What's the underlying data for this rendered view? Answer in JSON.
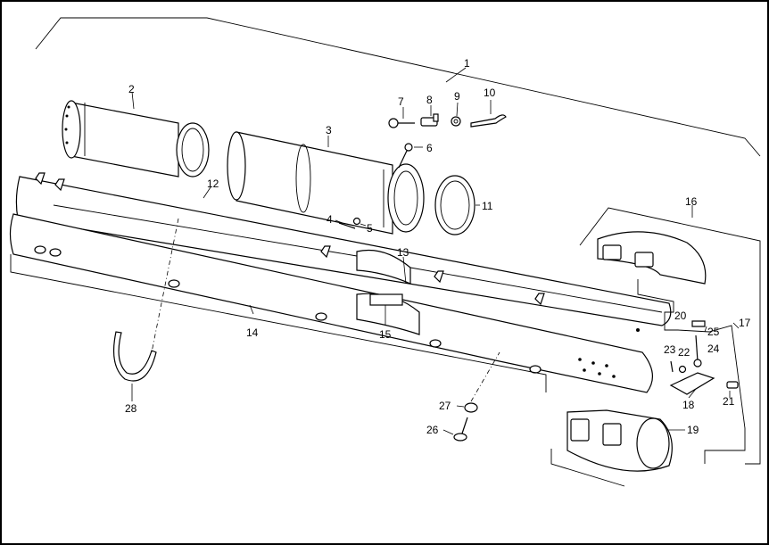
{
  "diagram": {
    "part_labels": {
      "p1": "1",
      "p2": "2",
      "p3": "3",
      "p4": "4",
      "p5": "5",
      "p6": "6",
      "p7": "7",
      "p8": "8",
      "p9": "9",
      "p10": "10",
      "p11": "11",
      "p12": "12",
      "p13": "13",
      "p14": "14",
      "p15": "15",
      "p16": "16",
      "p17": "17",
      "p18": "18",
      "p19": "19",
      "p20": "20",
      "p21": "21",
      "p22": "22",
      "p23": "23",
      "p24": "24",
      "p25": "25",
      "p26": "26",
      "p27": "27",
      "p28": "28"
    }
  }
}
